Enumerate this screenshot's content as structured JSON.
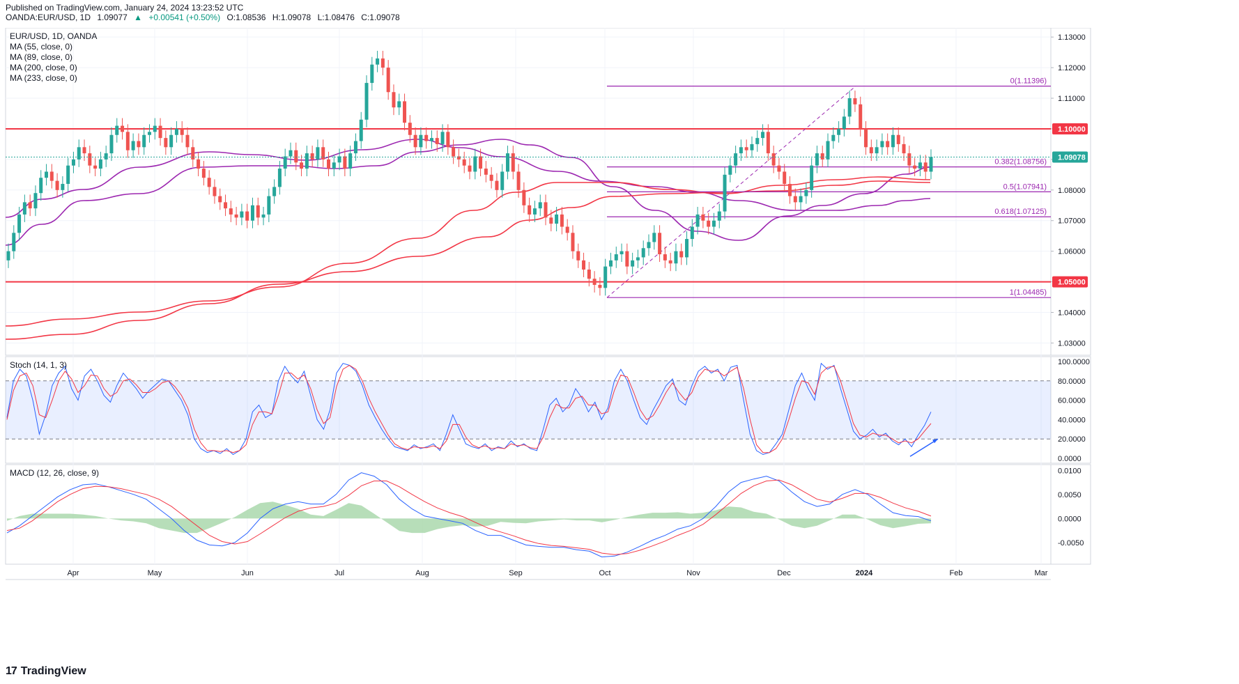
{
  "header": {
    "published": "Published on TradingView.com, January 24, 2024 13:23:52 UTC",
    "symbol": "OANDA:EUR/USD, 1D",
    "last": "1.09077",
    "change": "+0.00541 (+0.50%)",
    "open": "O:1.08536",
    "high": "H:1.09078",
    "low": "L:1.08476",
    "close": "C:1.09078"
  },
  "footer": {
    "brand": "TradingView",
    "brand_mark": "17"
  },
  "colors": {
    "bull": "#26a69a",
    "bear": "#ef5350",
    "ma_purple": "#9c27b0",
    "ma_red": "#f23645",
    "fib": "#9c27b0",
    "level": "#f23645",
    "stoch_k": "#2962ff",
    "stoch_d": "#f23645",
    "macd_hist": "#a5d6a7"
  },
  "chart_data": [
    {
      "type": "candlestick",
      "title": "EUR/USD, 1D, OANDA",
      "legend": [
        "MA (55, close, 0)",
        "MA (89, close, 0)",
        "MA (200, close, 0)",
        "MA (233, close, 0)"
      ],
      "ylim": [
        1.026,
        1.133
      ],
      "y_ticks": [
        "1.13000",
        "1.12000",
        "1.11000",
        "1.10000",
        "1.09000",
        "1.08000",
        "1.07000",
        "1.06000",
        "1.05000",
        "1.04000",
        "1.03000"
      ],
      "x_ticks": [
        "Apr",
        "May",
        "Jun",
        "Jul",
        "Aug",
        "Sep",
        "Oct",
        "Nov",
        "Dec",
        "2024",
        "Feb",
        "Mar"
      ],
      "price_tag": "1.09078",
      "horizontal_levels": [
        {
          "label": "1.10000",
          "value": 1.1
        },
        {
          "label": "1.05000",
          "value": 1.05
        }
      ],
      "fib_levels": [
        {
          "label": "0(1.11396)",
          "value": 1.11396
        },
        {
          "label": "0.382(1.08756)",
          "value": 1.08756
        },
        {
          "label": "0.5(1.07941)",
          "value": 1.07941
        },
        {
          "label": "0.618(1.07125)",
          "value": 1.07125
        },
        {
          "label": "1(1.04485)",
          "value": 1.04485
        }
      ],
      "closes": [
        1.06,
        1.066,
        1.072,
        1.076,
        1.074,
        1.079,
        1.084,
        1.086,
        1.083,
        1.08,
        1.082,
        1.088,
        1.09,
        1.094,
        1.092,
        1.088,
        1.087,
        1.09,
        1.092,
        1.098,
        1.101,
        1.099,
        1.093,
        1.096,
        1.094,
        1.098,
        1.099,
        1.101,
        1.097,
        1.094,
        1.098,
        1.1,
        1.098,
        1.094,
        1.09,
        1.087,
        1.084,
        1.081,
        1.078,
        1.076,
        1.074,
        1.072,
        1.071,
        1.073,
        1.07,
        1.075,
        1.071,
        1.072,
        1.078,
        1.081,
        1.087,
        1.091,
        1.093,
        1.089,
        1.087,
        1.092,
        1.09,
        1.094,
        1.09,
        1.087,
        1.089,
        1.091,
        1.087,
        1.092,
        1.096,
        1.103,
        1.115,
        1.121,
        1.123,
        1.12,
        1.112,
        1.107,
        1.109,
        1.102,
        1.098,
        1.094,
        1.098,
        1.096,
        1.097,
        1.095,
        1.099,
        1.094,
        1.091,
        1.09,
        1.088,
        1.086,
        1.091,
        1.087,
        1.085,
        1.083,
        1.08,
        1.086,
        1.092,
        1.086,
        1.08,
        1.075,
        1.072,
        1.074,
        1.076,
        1.071,
        1.069,
        1.072,
        1.068,
        1.066,
        1.06,
        1.057,
        1.054,
        1.051,
        1.049,
        1.048,
        1.055,
        1.057,
        1.059,
        1.06,
        1.055,
        1.057,
        1.058,
        1.061,
        1.063,
        1.066,
        1.059,
        1.057,
        1.056,
        1.06,
        1.058,
        1.064,
        1.068,
        1.072,
        1.07,
        1.068,
        1.07,
        1.073,
        1.085,
        1.088,
        1.092,
        1.094,
        1.093,
        1.095,
        1.097,
        1.099,
        1.092,
        1.088,
        1.086,
        1.082,
        1.078,
        1.076,
        1.078,
        1.08,
        1.088,
        1.092,
        1.09,
        1.096,
        1.098,
        1.1,
        1.104,
        1.11,
        1.108,
        1.1,
        1.094,
        1.092,
        1.094,
        1.096,
        1.094,
        1.098,
        1.095,
        1.092,
        1.088,
        1.087,
        1.089,
        1.086,
        1.0908
      ]
    },
    {
      "type": "line",
      "title": "Stoch (14, 1, 3)",
      "ylim": [
        -5,
        105
      ],
      "y_ticks": [
        "100.0000",
        "80.0000",
        "60.0000",
        "40.0000",
        "20.0000",
        "0.0000"
      ],
      "series": [
        {
          "name": "%K",
          "values": [
            42,
            80,
            92,
            85,
            60,
            25,
            45,
            75,
            88,
            95,
            72,
            60,
            85,
            92,
            80,
            65,
            58,
            75,
            88,
            80,
            72,
            62,
            70,
            76,
            82,
            80,
            70,
            60,
            45,
            20,
            10,
            6,
            8,
            5,
            10,
            4,
            8,
            20,
            48,
            55,
            42,
            46,
            80,
            95,
            85,
            78,
            90,
            65,
            40,
            30,
            50,
            88,
            98,
            96,
            90,
            75,
            55,
            42,
            30,
            20,
            12,
            10,
            8,
            14,
            10,
            12,
            15,
            8,
            25,
            45,
            30,
            15,
            12,
            10,
            15,
            8,
            12,
            10,
            18,
            12,
            15,
            10,
            8,
            30,
            55,
            62,
            48,
            55,
            72,
            62,
            48,
            58,
            40,
            52,
            80,
            92,
            80,
            60,
            42,
            35,
            50,
            62,
            75,
            82,
            60,
            55,
            75,
            90,
            95,
            88,
            92,
            80,
            94,
            96,
            60,
            25,
            8,
            4,
            6,
            15,
            25,
            50,
            75,
            88,
            72,
            60,
            98,
            92,
            96,
            72,
            50,
            28,
            20,
            24,
            30,
            22,
            26,
            18,
            14,
            20,
            12,
            24,
            34,
            48
          ]
        },
        {
          "name": "%D",
          "values": [
            40,
            70,
            85,
            88,
            75,
            45,
            42,
            60,
            80,
            90,
            82,
            68,
            75,
            86,
            85,
            72,
            64,
            68,
            80,
            82,
            76,
            68,
            68,
            72,
            78,
            80,
            74,
            65,
            52,
            30,
            16,
            8,
            8,
            7,
            8,
            6,
            8,
            14,
            35,
            48,
            48,
            46,
            65,
            88,
            88,
            82,
            86,
            72,
            50,
            36,
            42,
            74,
            92,
            96,
            92,
            80,
            62,
            48,
            36,
            24,
            15,
            11,
            9,
            12,
            11,
            11,
            13,
            10,
            18,
            35,
            35,
            22,
            14,
            11,
            13,
            10,
            11,
            10,
            15,
            13,
            14,
            11,
            10,
            22,
            42,
            56,
            52,
            52,
            62,
            64,
            55,
            55,
            46,
            48,
            70,
            86,
            84,
            68,
            50,
            40,
            44,
            55,
            68,
            78,
            68,
            60,
            68,
            84,
            92,
            90,
            90,
            85,
            90,
            94,
            72,
            40,
            14,
            6,
            6,
            10,
            20,
            40,
            62,
            80,
            78,
            66,
            88,
            94,
            95,
            80,
            58,
            36,
            24,
            22,
            26,
            24,
            24,
            20,
            16,
            18,
            16,
            20,
            28,
            36
          ]
        }
      ]
    },
    {
      "type": "line",
      "title": "MACD (12, 26, close, 9)",
      "ylim": [
        -0.0095,
        0.0112
      ],
      "y_ticks": [
        "0.0100",
        "0.0050",
        "0.0000",
        "-0.0050"
      ],
      "series": [
        {
          "name": "MACD",
          "values": [
            -0.003,
            -0.0015,
            0.0005,
            0.0025,
            0.0045,
            0.006,
            0.007,
            0.0072,
            0.0066,
            0.0058,
            0.005,
            0.004,
            0.002,
            0.0,
            -0.0025,
            -0.0045,
            -0.0055,
            -0.0057,
            -0.005,
            -0.003,
            0.0,
            0.002,
            0.003,
            0.0035,
            0.003,
            0.003,
            0.005,
            0.008,
            0.0095,
            0.0088,
            0.007,
            0.004,
            0.002,
            0.0005,
            0.0,
            -0.0005,
            -0.001,
            -0.0025,
            -0.0035,
            -0.0035,
            -0.0045,
            -0.0055,
            -0.0058,
            -0.006,
            -0.006,
            -0.0065,
            -0.0068,
            -0.008,
            -0.0078,
            -0.007,
            -0.0058,
            -0.0045,
            -0.0035,
            -0.0022,
            -0.0015,
            0.0,
            0.0025,
            0.0055,
            0.0075,
            0.0082,
            0.0088,
            0.0078,
            0.0055,
            0.0035,
            0.0025,
            0.003,
            0.005,
            0.006,
            0.005,
            0.003,
            0.0012,
            0.0006,
            0.0004,
            -0.0005
          ]
        },
        {
          "name": "Signal",
          "values": [
            -0.0025,
            -0.002,
            -0.0005,
            0.0015,
            0.0035,
            0.005,
            0.0062,
            0.0067,
            0.0066,
            0.0062,
            0.0056,
            0.005,
            0.004,
            0.0025,
            0.0005,
            -0.0015,
            -0.0035,
            -0.0048,
            -0.0053,
            -0.0048,
            -0.0032,
            -0.0015,
            0.0002,
            0.0015,
            0.0022,
            0.0025,
            0.0032,
            0.0048,
            0.0068,
            0.0078,
            0.0078,
            0.0066,
            0.005,
            0.0035,
            0.0022,
            0.0012,
            0.0004,
            -0.0008,
            -0.002,
            -0.0028,
            -0.0036,
            -0.0045,
            -0.0052,
            -0.0056,
            -0.0058,
            -0.0061,
            -0.0064,
            -0.0072,
            -0.0075,
            -0.0073,
            -0.0066,
            -0.0057,
            -0.0047,
            -0.0035,
            -0.0025,
            -0.0012,
            0.0008,
            0.003,
            0.0052,
            0.0068,
            0.0078,
            0.008,
            0.007,
            0.0055,
            0.004,
            0.0034,
            0.0042,
            0.0052,
            0.0052,
            0.0044,
            0.0032,
            0.0022,
            0.0015,
            0.0005
          ]
        }
      ]
    }
  ]
}
